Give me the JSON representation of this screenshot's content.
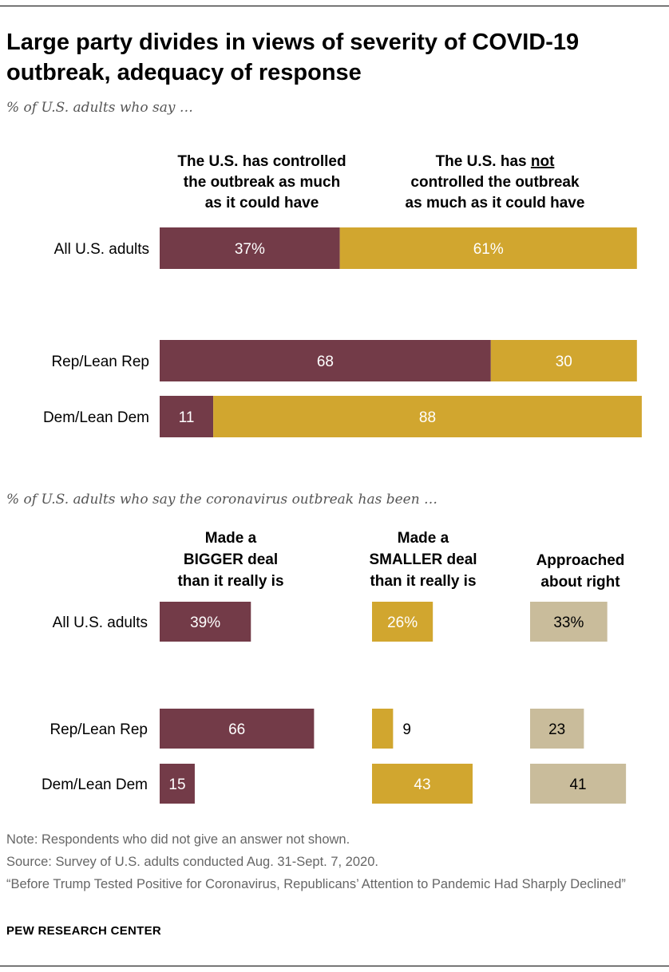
{
  "title": "Large party divides in views of severity of COVID-19 outbreak, adequacy of response",
  "colors": {
    "maroon": "#733b48",
    "gold": "#d1a62f",
    "tan": "#c9bc9b",
    "white_label": "#ffffff",
    "dark_label": "#000000"
  },
  "chart_data": [
    {
      "type": "bar",
      "stacked": true,
      "orientation": "horizontal",
      "subtitle": "% of U.S. adults who say …",
      "columns": [
        {
          "lines": [
            "The U.S. has controlled",
            "the outbreak as much",
            "as it could have"
          ]
        },
        {
          "lines_rich": [
            [
              {
                "t": "The U.S. has "
              },
              {
                "t": "not",
                "u": true
              }
            ],
            [
              {
                "t": "controlled the outbreak"
              }
            ],
            [
              {
                "t": "as much as it could have"
              }
            ]
          ]
        }
      ],
      "categories": [
        "All U.S. adults",
        "Rep/Lean Rep",
        "Dem/Lean Dem"
      ],
      "series": [
        {
          "name": "The U.S. has controlled the outbreak as much as it could have",
          "color": "#733b48",
          "values": [
            37,
            68,
            11
          ],
          "labels": [
            "37%",
            "68",
            "11"
          ]
        },
        {
          "name": "The U.S. has not controlled the outbreak as much as it could have",
          "color": "#d1a62f",
          "values": [
            61,
            30,
            88
          ],
          "labels": [
            "61%",
            "30",
            "88"
          ]
        }
      ],
      "xlim": [
        0,
        100
      ]
    },
    {
      "type": "bar",
      "stacked": false,
      "orientation": "horizontal",
      "subtitle": "% of U.S. adults who say the coronavirus outbreak has been …",
      "categories": [
        "All U.S. adults",
        "Rep/Lean Rep",
        "Dem/Lean Dem"
      ],
      "series": [
        {
          "name": "Made a BIGGER deal than it really is",
          "lines": [
            "Made a",
            "BIGGER deal",
            "than it really is"
          ],
          "color": "#733b48",
          "values": [
            39,
            66,
            15
          ],
          "labels": [
            "39%",
            "66",
            "15"
          ]
        },
        {
          "name": "Made a SMALLER deal than it really is",
          "lines": [
            "Made a",
            "SMALLER deal",
            "than it really is"
          ],
          "color": "#d1a62f",
          "values": [
            26,
            9,
            43
          ],
          "labels": [
            "26%",
            "9",
            "43"
          ]
        },
        {
          "name": "Approached about right",
          "lines": [
            "Approached",
            "about right"
          ],
          "color": "#c9bc9b",
          "values": [
            33,
            23,
            41
          ],
          "labels": [
            "33%",
            "23",
            "41"
          ]
        }
      ],
      "xlim": [
        0,
        100
      ]
    }
  ],
  "notes": {
    "note": "Note: Respondents who did not give an answer not shown.",
    "source": "Source: Survey of U.S. adults conducted Aug. 31-Sept. 7, 2020.",
    "report": "“Before Trump Tested Positive for Coronavirus, Republicans’ Attention to Pandemic Had Sharply Declined”"
  },
  "footer": "PEW RESEARCH CENTER"
}
